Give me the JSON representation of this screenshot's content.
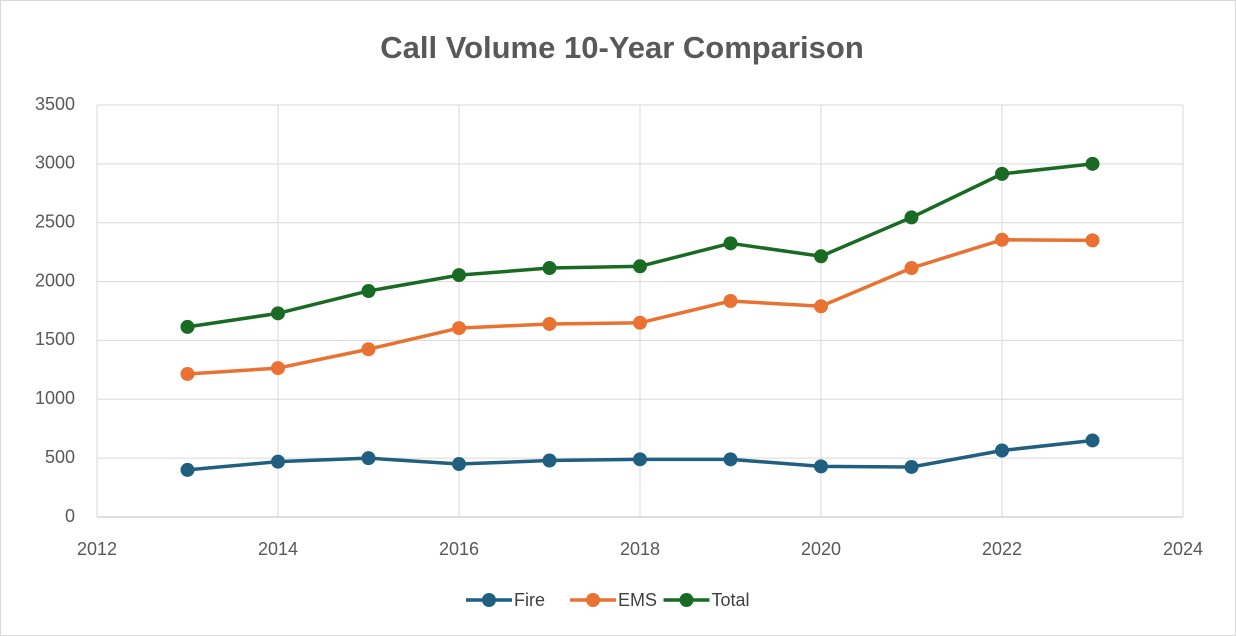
{
  "chart_data": {
    "type": "line",
    "title": "Call Volume 10-Year Comparison",
    "x": [
      2013,
      2014,
      2015,
      2016,
      2017,
      2018,
      2019,
      2020,
      2021,
      2022,
      2023
    ],
    "series": [
      {
        "name": "Fire",
        "color": "#215f80",
        "values": [
          400,
          470,
          500,
          450,
          480,
          490,
          490,
          430,
          425,
          565,
          650
        ]
      },
      {
        "name": "EMS",
        "color": "#e97132",
        "values": [
          1215,
          1265,
          1425,
          1605,
          1640,
          1650,
          1835,
          1790,
          2115,
          2355,
          2350
        ]
      },
      {
        "name": "Total",
        "color": "#196b24",
        "values": [
          1615,
          1730,
          1920,
          2055,
          2115,
          2130,
          2325,
          2215,
          2545,
          2915,
          3000
        ]
      }
    ],
    "xlim": [
      2012,
      2024
    ],
    "xticks": [
      2012,
      2014,
      2016,
      2018,
      2020,
      2022,
      2024
    ],
    "ylim": [
      0,
      3500
    ],
    "yticks": [
      0,
      500,
      1000,
      1500,
      2000,
      2500,
      3000,
      3500
    ],
    "grid": true,
    "legend": "bottom"
  }
}
